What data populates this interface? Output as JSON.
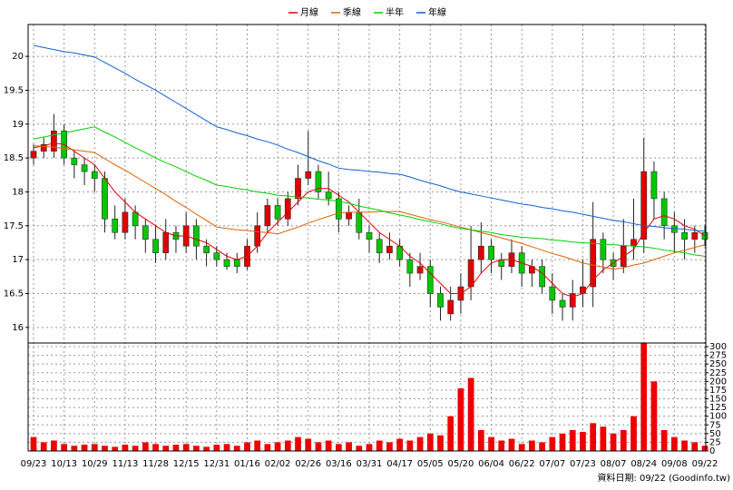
{
  "chart_data": [
    {
      "type": "candlestick",
      "legend": [
        "月線",
        "季線",
        "半年",
        "年線"
      ],
      "footer": "資料日期: 09/22 (Goodinfo.tw)",
      "up_color": "#e00000",
      "down_color": "#00c800",
      "grid": true,
      "categories": [
        "09/23",
        null,
        null,
        "10/13",
        null,
        null,
        "10/29",
        null,
        null,
        "11/13",
        null,
        null,
        "11/28",
        null,
        null,
        "12/15",
        null,
        null,
        "12/31",
        null,
        null,
        "01/16",
        null,
        null,
        "02/02",
        null,
        null,
        "02/26",
        null,
        null,
        "03/16",
        null,
        null,
        "03/31",
        null,
        null,
        "04/17",
        null,
        null,
        "05/05",
        null,
        null,
        "05/20",
        null,
        null,
        "06/04",
        null,
        null,
        "06/22",
        null,
        null,
        "07/07",
        null,
        null,
        "07/23",
        null,
        null,
        "08/07",
        null,
        null,
        "08/24",
        null,
        null,
        "09/08",
        null,
        null,
        "09/22"
      ],
      "open": [
        18.5,
        18.6,
        18.6,
        18.9,
        18.5,
        18.4,
        18.3,
        18.2,
        17.6,
        17.4,
        17.7,
        17.5,
        17.3,
        17.1,
        17.4,
        17.2,
        17.5,
        17.2,
        17.1,
        17.0,
        17.0,
        16.9,
        17.2,
        17.5,
        17.8,
        17.6,
        17.9,
        18.2,
        18.3,
        18.0,
        17.9,
        17.6,
        17.7,
        17.4,
        17.3,
        17.1,
        17.2,
        17.0,
        16.8,
        16.9,
        16.5,
        16.2,
        16.4,
        16.6,
        17.0,
        17.2,
        17.0,
        16.9,
        17.1,
        16.8,
        16.9,
        16.6,
        16.4,
        16.3,
        16.5,
        16.6,
        17.3,
        17.0,
        16.9,
        17.2,
        17.3,
        18.3,
        17.9,
        17.5,
        17.4,
        17.3,
        17.4
      ],
      "high": [
        18.7,
        18.8,
        19.15,
        19.0,
        18.6,
        18.5,
        18.4,
        18.3,
        17.8,
        17.9,
        17.8,
        17.6,
        17.5,
        17.6,
        17.5,
        17.7,
        17.6,
        17.3,
        17.2,
        17.1,
        17.1,
        17.3,
        17.7,
        17.9,
        17.9,
        18.0,
        18.4,
        18.9,
        18.4,
        18.3,
        18.0,
        17.8,
        17.9,
        17.5,
        17.4,
        17.4,
        17.3,
        17.1,
        17.1,
        17.0,
        16.6,
        16.6,
        16.8,
        17.5,
        17.55,
        17.3,
        17.1,
        17.3,
        17.2,
        17.0,
        17.0,
        16.8,
        16.5,
        16.7,
        17.0,
        17.85,
        17.4,
        17.1,
        17.6,
        17.9,
        18.8,
        18.45,
        18.0,
        17.7,
        17.6,
        17.5,
        17.5
      ],
      "low": [
        18.4,
        18.5,
        18.5,
        18.4,
        18.2,
        18.1,
        18.0,
        17.4,
        17.3,
        17.3,
        17.3,
        17.1,
        16.95,
        17.0,
        17.1,
        17.1,
        17.0,
        16.9,
        16.9,
        16.85,
        16.8,
        16.85,
        17.1,
        17.4,
        17.5,
        17.5,
        17.8,
        18.1,
        17.9,
        17.8,
        17.4,
        17.5,
        17.3,
        17.1,
        16.95,
        17.0,
        16.9,
        16.6,
        16.7,
        16.3,
        16.1,
        16.1,
        16.2,
        16.4,
        16.8,
        16.8,
        16.7,
        16.8,
        16.6,
        16.6,
        16.5,
        16.2,
        16.1,
        16.1,
        16.3,
        16.3,
        16.8,
        16.7,
        16.8,
        17.0,
        17.1,
        17.6,
        17.3,
        17.1,
        17.0,
        17.1,
        17.2
      ],
      "close": [
        18.6,
        18.7,
        18.9,
        18.5,
        18.4,
        18.3,
        18.2,
        17.6,
        17.4,
        17.7,
        17.5,
        17.3,
        17.1,
        17.4,
        17.3,
        17.5,
        17.2,
        17.1,
        17.0,
        16.9,
        16.9,
        17.2,
        17.5,
        17.8,
        17.6,
        17.9,
        18.2,
        18.3,
        18.0,
        17.9,
        17.6,
        17.7,
        17.4,
        17.3,
        17.1,
        17.2,
        17.0,
        16.8,
        16.9,
        16.5,
        16.3,
        16.4,
        16.6,
        17.0,
        17.2,
        17.0,
        16.9,
        17.1,
        16.8,
        16.9,
        16.6,
        16.4,
        16.3,
        16.5,
        16.6,
        17.3,
        17.0,
        16.9,
        17.2,
        17.3,
        18.3,
        17.9,
        17.5,
        17.4,
        17.3,
        17.4,
        17.3
      ],
      "series": [
        {
          "name": "月線",
          "color": "#e00000",
          "values": [
            18.65,
            18.68,
            18.72,
            18.7,
            18.6,
            18.5,
            18.4,
            18.2,
            18.0,
            17.85,
            17.7,
            17.6,
            17.5,
            17.4,
            17.35,
            17.35,
            17.3,
            17.25,
            17.15,
            17.05,
            17.0,
            17.05,
            17.2,
            17.4,
            17.55,
            17.7,
            17.85,
            18.0,
            18.05,
            18.05,
            17.95,
            17.85,
            17.7,
            17.55,
            17.4,
            17.3,
            17.2,
            17.05,
            16.95,
            16.8,
            16.65,
            16.5,
            16.5,
            16.6,
            16.8,
            16.95,
            17.0,
            17.0,
            16.95,
            16.9,
            16.8,
            16.65,
            16.5,
            16.45,
            16.5,
            16.7,
            16.85,
            16.95,
            17.05,
            17.15,
            17.4,
            17.6,
            17.65,
            17.6,
            17.5,
            17.45,
            17.35
          ]
        },
        {
          "name": "季線",
          "color": "#e06000",
          "values": [
            18.68,
            18.67,
            18.66,
            18.64,
            18.62,
            18.6,
            18.58,
            18.49,
            18.4,
            18.32,
            18.23,
            18.14,
            18.05,
            17.96,
            17.86,
            17.77,
            17.67,
            17.58,
            17.48,
            17.46,
            17.44,
            17.43,
            17.41,
            17.4,
            17.38,
            17.43,
            17.48,
            17.54,
            17.59,
            17.64,
            17.69,
            17.7,
            17.7,
            17.7,
            17.71,
            17.71,
            17.71,
            17.67,
            17.63,
            17.59,
            17.56,
            17.52,
            17.48,
            17.44,
            17.4,
            17.36,
            17.32,
            17.28,
            17.24,
            17.19,
            17.14,
            17.09,
            17.05,
            17.0,
            16.95,
            16.92,
            16.89,
            16.86,
            16.88,
            16.92,
            16.95,
            17.0,
            17.05,
            17.1,
            17.14,
            17.18,
            17.22
          ]
        },
        {
          "name": "半年",
          "color": "#00d000",
          "values": [
            18.78,
            18.81,
            18.84,
            18.87,
            18.9,
            18.93,
            18.96,
            18.88,
            18.81,
            18.73,
            18.65,
            18.58,
            18.5,
            18.43,
            18.37,
            18.3,
            18.23,
            18.17,
            18.1,
            18.08,
            18.05,
            18.03,
            18.0,
            17.98,
            17.95,
            17.94,
            17.92,
            17.91,
            17.89,
            17.88,
            17.86,
            17.83,
            17.79,
            17.76,
            17.73,
            17.69,
            17.66,
            17.63,
            17.59,
            17.56,
            17.53,
            17.49,
            17.46,
            17.44,
            17.42,
            17.4,
            17.37,
            17.35,
            17.33,
            17.32,
            17.31,
            17.29,
            17.28,
            17.26,
            17.25,
            17.24,
            17.23,
            17.22,
            17.21,
            17.2,
            17.19,
            17.17,
            17.14,
            17.12,
            17.1,
            17.07,
            17.05
          ]
        },
        {
          "name": "年線",
          "color": "#1060d0",
          "values": [
            20.16,
            20.13,
            20.1,
            20.07,
            20.05,
            20.02,
            19.99,
            19.91,
            19.83,
            19.75,
            19.66,
            19.58,
            19.5,
            19.41,
            19.32,
            19.23,
            19.14,
            19.05,
            18.96,
            18.92,
            18.87,
            18.83,
            18.78,
            18.74,
            18.69,
            18.63,
            18.58,
            18.52,
            18.46,
            18.41,
            18.35,
            18.33,
            18.32,
            18.3,
            18.29,
            18.27,
            18.26,
            18.22,
            18.17,
            18.13,
            18.09,
            18.04,
            18.0,
            17.97,
            17.94,
            17.91,
            17.88,
            17.85,
            17.82,
            17.8,
            17.77,
            17.75,
            17.72,
            17.7,
            17.67,
            17.64,
            17.61,
            17.58,
            17.56,
            17.53,
            17.5,
            17.49,
            17.47,
            17.46,
            17.45,
            17.43,
            17.42
          ]
        }
      ],
      "ylim": [
        15.77,
        20.47
      ],
      "yticks": [
        16,
        16.5,
        17,
        17.5,
        18,
        18.5,
        19,
        19.5,
        20
      ]
    },
    {
      "type": "bar",
      "color": "#ee0000",
      "grid": true,
      "values": [
        40,
        25,
        30,
        20,
        15,
        18,
        20,
        15,
        12,
        18,
        15,
        25,
        20,
        15,
        18,
        20,
        15,
        12,
        18,
        20,
        15,
        25,
        30,
        20,
        25,
        30,
        40,
        35,
        25,
        30,
        20,
        25,
        15,
        20,
        30,
        25,
        35,
        30,
        40,
        50,
        45,
        100,
        180,
        210,
        60,
        40,
        30,
        35,
        20,
        30,
        25,
        40,
        50,
        60,
        55,
        80,
        70,
        50,
        60,
        100,
        310,
        200,
        60,
        40,
        30,
        25,
        15
      ],
      "ylim": [
        0,
        310.5
      ],
      "yticks": [
        0,
        25,
        50,
        75,
        100,
        125,
        150,
        175,
        200,
        225,
        250,
        275,
        300
      ]
    }
  ]
}
